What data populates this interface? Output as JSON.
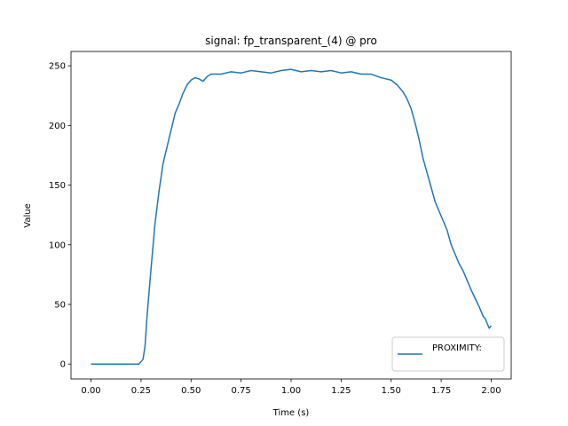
{
  "chart_data": {
    "type": "line",
    "title": "signal: fp_transparent_(4) @ pro",
    "xlabel": "Time (s)",
    "ylabel": "Value",
    "xlim": [
      -0.1,
      2.1
    ],
    "ylim": [
      -12.5,
      262
    ],
    "xticks": [
      0.0,
      0.25,
      0.5,
      0.75,
      1.0,
      1.25,
      1.5,
      1.75,
      2.0
    ],
    "xtick_labels": [
      "0.00",
      "0.25",
      "0.50",
      "0.75",
      "1.00",
      "1.25",
      "1.50",
      "1.75",
      "2.00"
    ],
    "yticks": [
      0,
      50,
      100,
      150,
      200,
      250
    ],
    "ytick_labels": [
      "0",
      "50",
      "100",
      "150",
      "200",
      "250"
    ],
    "grid": false,
    "legend_position": "lower-right",
    "series": [
      {
        "name": "PROXIMITY:",
        "color": "#1f77b4",
        "x": [
          0.0,
          0.05,
          0.1,
          0.15,
          0.2,
          0.24,
          0.26,
          0.27,
          0.28,
          0.3,
          0.32,
          0.34,
          0.36,
          0.38,
          0.4,
          0.42,
          0.44,
          0.46,
          0.48,
          0.5,
          0.52,
          0.54,
          0.56,
          0.58,
          0.6,
          0.65,
          0.7,
          0.75,
          0.8,
          0.85,
          0.9,
          0.95,
          1.0,
          1.05,
          1.1,
          1.15,
          1.2,
          1.25,
          1.3,
          1.35,
          1.4,
          1.45,
          1.5,
          1.53,
          1.56,
          1.58,
          1.6,
          1.62,
          1.64,
          1.66,
          1.68,
          1.7,
          1.72,
          1.74,
          1.76,
          1.78,
          1.8,
          1.82,
          1.84,
          1.86,
          1.88,
          1.9,
          1.92,
          1.94,
          1.96,
          1.97,
          1.98,
          1.99,
          2.0
        ],
        "y": [
          0,
          0,
          0,
          0,
          0,
          0,
          4,
          15,
          40,
          80,
          118,
          145,
          168,
          182,
          196,
          210,
          218,
          227,
          234,
          238,
          240,
          239,
          237,
          241,
          243,
          243,
          245,
          244,
          246,
          245,
          244,
          246,
          247,
          245,
          246,
          245,
          246,
          244,
          245,
          243,
          243,
          240,
          238,
          234,
          228,
          222,
          214,
          202,
          188,
          172,
          160,
          148,
          136,
          128,
          120,
          112,
          100,
          92,
          84,
          78,
          70,
          62,
          55,
          48,
          40,
          38,
          34,
          30,
          32
        ]
      }
    ]
  }
}
